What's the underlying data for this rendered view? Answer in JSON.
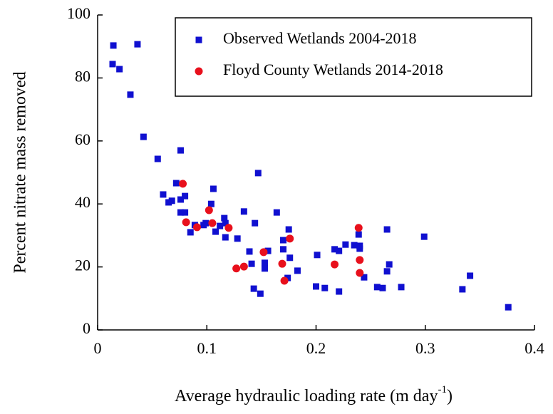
{
  "chart_data": {
    "type": "scatter",
    "y_label": "Percent nitrate mass removed",
    "x_label": {
      "text": "Average hydraulic loading rate (m day",
      "sup": "-1",
      "tail": ")"
    },
    "xlim": [
      0,
      0.4
    ],
    "xticks": [
      0,
      0.1,
      0.2,
      0.3,
      0.4
    ],
    "ylim": [
      0,
      100
    ],
    "yticks": [
      0,
      20,
      40,
      60,
      80,
      100
    ],
    "legend": "upper right",
    "series": [
      {
        "name": "Observed Wetlands 2004-2018",
        "color": "#1010d0",
        "marker": "square",
        "x": [
          0.0144,
          0.0365,
          0.0137,
          0.02,
          0.03,
          0.042,
          0.055,
          0.076,
          0.06,
          0.065,
          0.068,
          0.072,
          0.076,
          0.08,
          0.076,
          0.08,
          0.085,
          0.089,
          0.097,
          0.099,
          0.104,
          0.106,
          0.108,
          0.112,
          0.116,
          0.117,
          0.117,
          0.128,
          0.134,
          0.139,
          0.141,
          0.144,
          0.143,
          0.147,
          0.149,
          0.153,
          0.156,
          0.153,
          0.164,
          0.17,
          0.17,
          0.175,
          0.176,
          0.174,
          0.183,
          0.201,
          0.2,
          0.208,
          0.217,
          0.221,
          0.221,
          0.227,
          0.235,
          0.239,
          0.24,
          0.24,
          0.244,
          0.256,
          0.261,
          0.265,
          0.265,
          0.267,
          0.278,
          0.299,
          0.334,
          0.341,
          0.376
        ],
        "values": [
          90.3,
          90.7,
          84.4,
          82.8,
          74.7,
          61.3,
          54.3,
          57.0,
          43.0,
          40.5,
          41.0,
          46.6,
          41.4,
          42.5,
          37.3,
          37.3,
          31.0,
          33.3,
          33.3,
          33.9,
          40.0,
          44.8,
          31.2,
          33.0,
          35.5,
          33.9,
          29.4,
          29.0,
          37.6,
          24.9,
          21.0,
          33.9,
          13.1,
          49.8,
          11.5,
          21.3,
          25.1,
          19.5,
          37.3,
          28.5,
          25.6,
          31.9,
          22.9,
          16.5,
          18.8,
          23.8,
          13.8,
          13.3,
          25.6,
          12.2,
          25.1,
          27.1,
          26.9,
          30.3,
          26.7,
          25.8,
          16.7,
          13.6,
          13.3,
          31.9,
          18.6,
          20.8,
          13.6,
          29.6,
          12.9,
          17.2,
          7.2
        ]
      },
      {
        "name": "Floyd County Wetlands 2014-2018",
        "color": "#e8101c",
        "marker": "circle",
        "x": [
          0.078,
          0.081,
          0.091,
          0.102,
          0.105,
          0.12,
          0.127,
          0.134,
          0.152,
          0.169,
          0.171,
          0.176,
          0.217,
          0.239,
          0.24,
          0.24
        ],
        "values": [
          46.4,
          34.2,
          32.6,
          38.0,
          33.9,
          32.4,
          19.5,
          20.1,
          24.7,
          21.0,
          15.6,
          29.0,
          20.8,
          32.4,
          22.2,
          18.1
        ]
      }
    ]
  }
}
